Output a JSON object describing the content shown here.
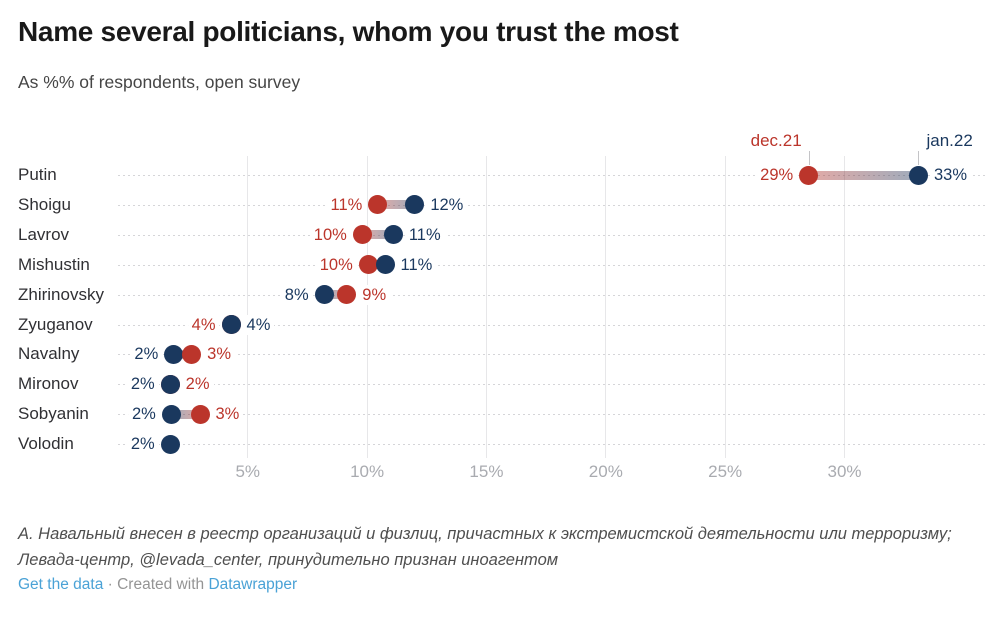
{
  "header": {
    "title": "Name several politicians, whom you trust the most",
    "subtitle": "As %% of respondents, open survey"
  },
  "colors": {
    "dec": "#bb352b",
    "jan": "#1a385e",
    "grid": "#e7e7e9",
    "row_dash": "#d5d5d8",
    "axis_label": "#a9abb0",
    "row_label": "#303034",
    "legend_tick": "#c4c4c7",
    "link": "#4aa2d6",
    "notes": "#4f4f4f"
  },
  "chart_data": {
    "type": "dumbbell-dot-plot",
    "title": "Name several politicians, whom you trust the most",
    "subtitle": "As %% of respondents, open survey",
    "unit": "%",
    "categories": [
      "Putin",
      "Shoigu",
      "Lavrov",
      "Mishustin",
      "Zhirinovsky",
      "Zyuganov",
      "Navalny",
      "Mironov",
      "Sobyanin",
      "Volodin"
    ],
    "series": [
      {
        "name": "dec.21",
        "values": [
          29,
          11,
          10,
          10,
          9,
          4,
          3,
          2,
          3,
          null
        ]
      },
      {
        "name": "jan.22",
        "values": [
          33,
          12,
          11,
          11,
          8,
          4,
          2,
          2,
          2,
          2
        ]
      }
    ],
    "x_ticks": [
      "5%",
      "10%",
      "15%",
      "20%",
      "25%",
      "30%"
    ],
    "x_tick_values": [
      5,
      10,
      15,
      20,
      25,
      30
    ],
    "xlim": [
      0,
      35.9
    ],
    "grid": "vertical-solid-with-dotted-row-guides",
    "legend_position": "top-right-above-first-row",
    "rows": [
      {
        "label": "Putin",
        "dec": {
          "text": "29%",
          "pos": 28.5
        },
        "jan": {
          "text": "33%",
          "pos": 33.1
        },
        "left": "dec"
      },
      {
        "label": "Shoigu",
        "dec": {
          "text": "11%",
          "pos": 10.45
        },
        "jan": {
          "text": "12%",
          "pos": 12.0
        },
        "left": "dec"
      },
      {
        "label": "Lavrov",
        "dec": {
          "text": "10%",
          "pos": 9.8
        },
        "jan": {
          "text": "11%",
          "pos": 11.1
        },
        "left": "dec"
      },
      {
        "label": "Mishustin",
        "dec": {
          "text": "10%",
          "pos": 10.05
        },
        "jan": {
          "text": "11%",
          "pos": 10.75
        },
        "left": "dec"
      },
      {
        "label": "Zhirinovsky",
        "dec": {
          "text": "9%",
          "pos": 9.15
        },
        "jan": {
          "text": "8%",
          "pos": 8.2
        },
        "left": "jan"
      },
      {
        "label": "Zyuganov",
        "dec": {
          "text": "4%",
          "pos": 4.3
        },
        "jan": {
          "text": "4%",
          "pos": 4.3
        },
        "left": "dec"
      },
      {
        "label": "Navalny",
        "dec": {
          "text": "3%",
          "pos": 2.65
        },
        "jan": {
          "text": "2%",
          "pos": 1.9
        },
        "left": "jan"
      },
      {
        "label": "Mironov",
        "dec": {
          "text": "2%",
          "pos": 1.75
        },
        "jan": {
          "text": "2%",
          "pos": 1.75
        },
        "left": "jan"
      },
      {
        "label": "Sobyanin",
        "dec": {
          "text": "3%",
          "pos": 3.0
        },
        "jan": {
          "text": "2%",
          "pos": 1.8
        },
        "left": "jan"
      },
      {
        "label": "Volodin",
        "dec": null,
        "jan": {
          "text": "2%",
          "pos": 1.75
        },
        "left": "jan"
      }
    ]
  },
  "footer": {
    "notes": "А. Навальный внесен в реестр организаций и физлиц, причастных к экстремистской деятельности или терроризму; Левада-центр, @levada_center, принудительно признан иноагентом",
    "get_data": "Get the data",
    "separator": "·",
    "created_with": "Created with",
    "datawrapper": "Datawrapper"
  }
}
